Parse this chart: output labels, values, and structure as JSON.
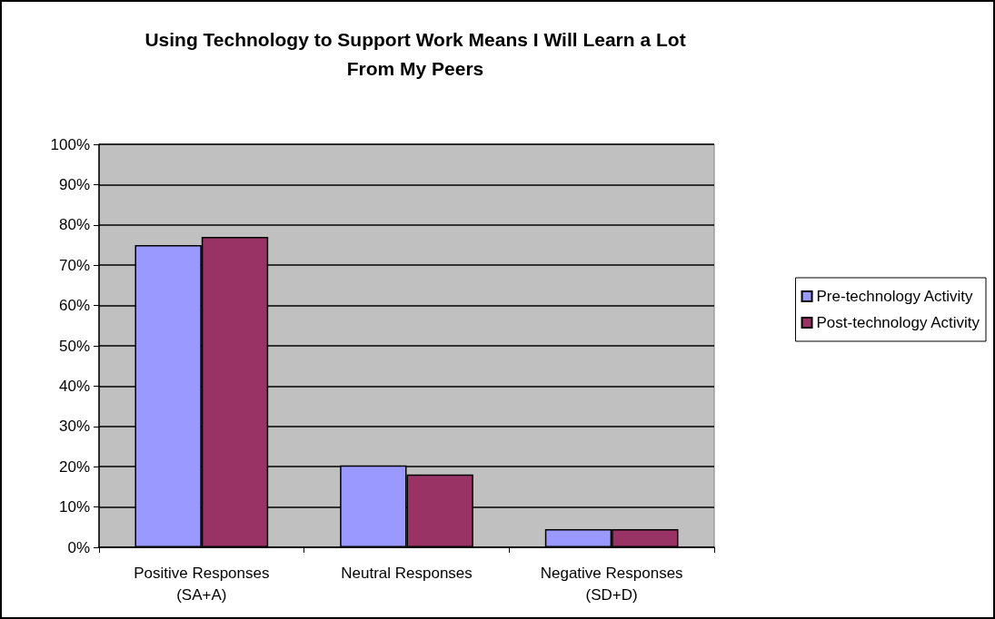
{
  "chart_data": {
    "type": "bar",
    "title": "Using Technology to Support Work Means I Will Learn a Lot\nFrom My Peers",
    "categories": [
      "Positive Responses\n(SA+A)",
      "Neutral Responses",
      "Negative Responses\n(SD+D)"
    ],
    "series": [
      {
        "name": "Pre-technology Activity",
        "color": "#9999ff",
        "values": [
          75,
          20.3,
          4.5
        ]
      },
      {
        "name": "Post-technology Activity",
        "color": "#993366",
        "values": [
          77,
          18.1,
          4.5
        ]
      }
    ],
    "ylim": [
      0,
      100
    ],
    "yticks": [
      {
        "value": 0,
        "label": "0%"
      },
      {
        "value": 10,
        "label": "10%"
      },
      {
        "value": 20,
        "label": "20%"
      },
      {
        "value": 30,
        "label": "30%"
      },
      {
        "value": 40,
        "label": "40%"
      },
      {
        "value": 50,
        "label": "50%"
      },
      {
        "value": 60,
        "label": "60%"
      },
      {
        "value": 70,
        "label": "70%"
      },
      {
        "value": 80,
        "label": "80%"
      },
      {
        "value": 90,
        "label": "90%"
      },
      {
        "value": 100,
        "label": "100%"
      }
    ],
    "grid": "y",
    "legend": "right"
  }
}
